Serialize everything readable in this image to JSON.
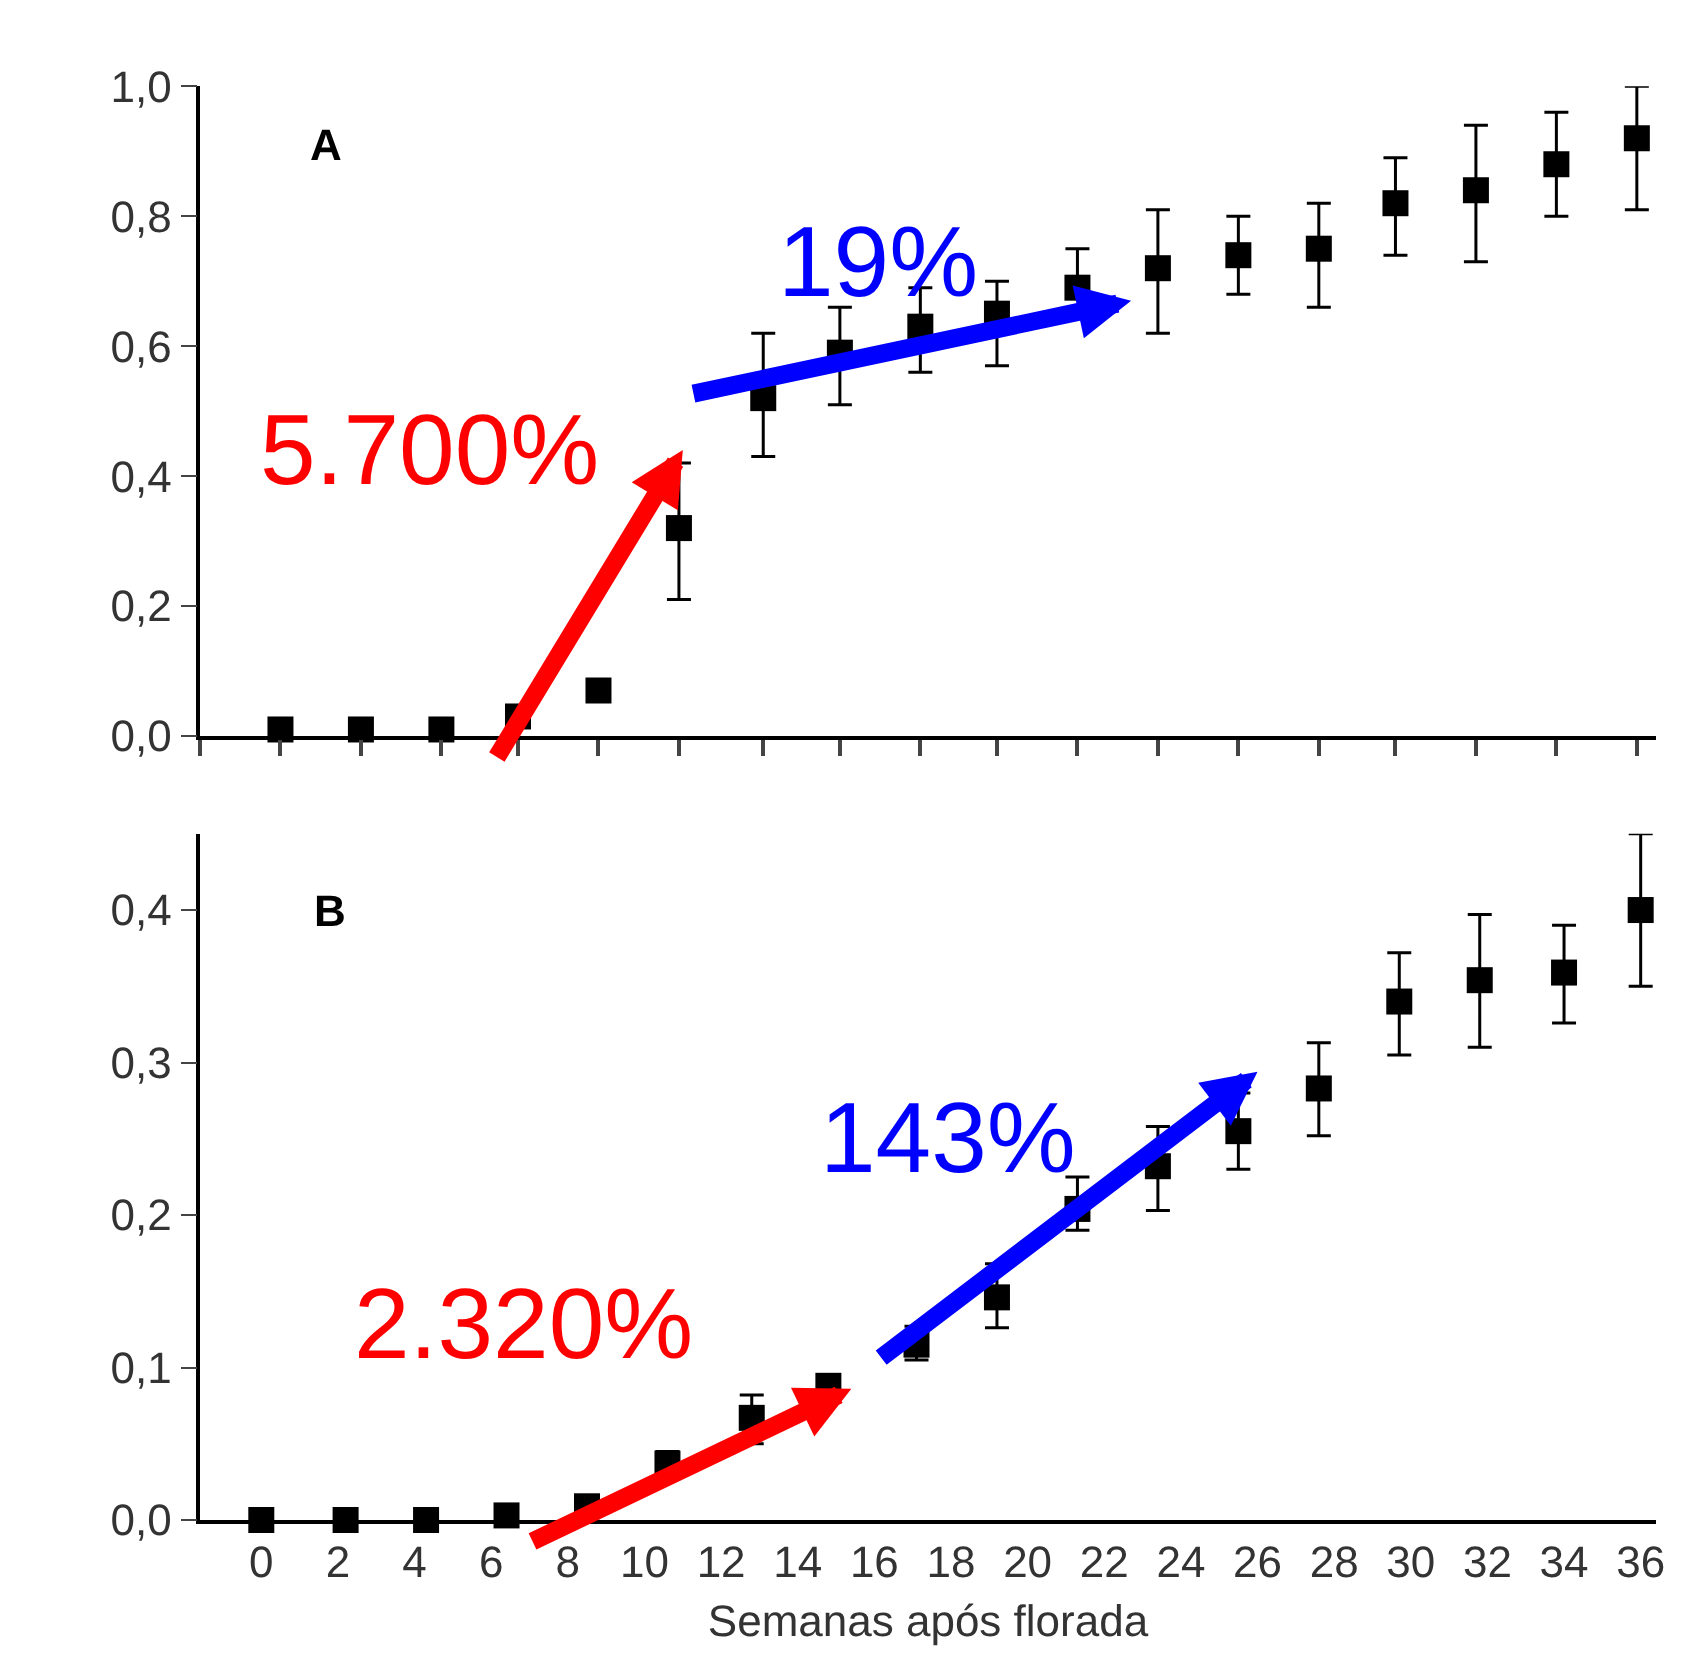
{
  "chart_data": [
    {
      "type": "scatter",
      "x": [
        0.5,
        2.6,
        4.7,
        6.7,
        8.8,
        10.9,
        13.1,
        15.1,
        17.2,
        19.2,
        21.3,
        23.4,
        25.5,
        27.6,
        29.6,
        31.7,
        33.8,
        35.9
      ],
      "values": [
        0.01,
        0.01,
        0.01,
        0.03,
        0.07,
        0.32,
        0.52,
        0.59,
        0.63,
        0.65,
        0.69,
        0.72,
        0.74,
        0.75,
        0.82,
        0.84,
        0.88,
        0.92
      ],
      "errors": [
        null,
        null,
        null,
        null,
        null,
        [
          0.21,
          0.42
        ],
        [
          0.43,
          0.62
        ],
        [
          0.51,
          0.66
        ],
        [
          0.56,
          0.69
        ],
        [
          0.57,
          0.7
        ],
        [
          0.69,
          0.75
        ],
        [
          0.62,
          0.81
        ],
        [
          0.68,
          0.8
        ],
        [
          0.66,
          0.82
        ],
        [
          0.74,
          0.89
        ],
        [
          0.73,
          0.94
        ],
        [
          0.8,
          0.96
        ],
        [
          0.81,
          1.0
        ]
      ],
      "color": "#000000",
      "marker": "square",
      "grid": false,
      "tick_labels": "y",
      "xlim": [
        -1.6,
        36.4
      ],
      "xticks": [
        {
          "value": -1.6,
          "label": null
        },
        {
          "value": 0.5,
          "label": null
        },
        {
          "value": 2.6,
          "label": null
        },
        {
          "value": 4.7,
          "label": null
        },
        {
          "value": 6.7,
          "label": null
        },
        {
          "value": 8.8,
          "label": null
        },
        {
          "value": 10.9,
          "label": null
        },
        {
          "value": 13.1,
          "label": null
        },
        {
          "value": 15.1,
          "label": null
        },
        {
          "value": 17.2,
          "label": null
        },
        {
          "value": 19.2,
          "label": null
        },
        {
          "value": 21.3,
          "label": null
        },
        {
          "value": 23.4,
          "label": null
        },
        {
          "value": 25.5,
          "label": null
        },
        {
          "value": 27.6,
          "label": null
        },
        {
          "value": 29.6,
          "label": null
        },
        {
          "value": 31.7,
          "label": null
        },
        {
          "value": 33.8,
          "label": null
        },
        {
          "value": 35.9,
          "label": null
        }
      ],
      "ylim": [
        0,
        1
      ],
      "yticks": [
        {
          "value": 0,
          "label": "0,0"
        },
        {
          "value": 0.2,
          "label": "0,2"
        },
        {
          "value": 0.4,
          "label": "0,4"
        },
        {
          "value": 0.6,
          "label": "0,6"
        },
        {
          "value": 0.8,
          "label": "0,8"
        },
        {
          "value": 1,
          "label": "1,0"
        }
      ],
      "annotations": [
        "A",
        "5.700%",
        "19%"
      ]
    },
    {
      "type": "scatter",
      "x": [
        0,
        2.2,
        4.3,
        6.4,
        8.5,
        10.6,
        12.8,
        14.8,
        17.1,
        19.2,
        21.3,
        23.4,
        25.5,
        27.6,
        29.7,
        31.8,
        34,
        36
      ],
      "values": [
        0,
        0,
        0,
        0.003,
        0.009,
        0.037,
        0.067,
        0.088,
        0.115,
        0.146,
        0.204,
        0.232,
        0.255,
        0.283,
        0.34,
        0.354,
        0.359,
        0.4
      ],
      "errors": [
        null,
        null,
        null,
        null,
        null,
        [
          0.03,
          0.045
        ],
        [
          0.05,
          0.082
        ],
        null,
        [
          0.105,
          0.127
        ],
        [
          0.126,
          0.168
        ],
        [
          0.19,
          0.225
        ],
        [
          0.203,
          0.258
        ],
        [
          0.23,
          0.28
        ],
        [
          0.252,
          0.313
        ],
        [
          0.305,
          0.372
        ],
        [
          0.31,
          0.397
        ],
        [
          0.326,
          0.39
        ],
        [
          0.35,
          0.45
        ]
      ],
      "color": "#000000",
      "marker": "square",
      "grid": false,
      "xlabel": "Semanas após florada",
      "xlim": [
        -1.6,
        36.4
      ],
      "xticks": [
        0,
        2,
        4,
        6,
        8,
        10,
        12,
        14,
        16,
        18,
        20,
        22,
        24,
        26,
        28,
        30,
        32,
        34,
        36
      ],
      "ylim": [
        0,
        0.45
      ],
      "yticks": [
        {
          "value": 0,
          "label": "0,0"
        },
        {
          "value": 0.1,
          "label": "0,1"
        },
        {
          "value": 0.2,
          "label": "0,2"
        },
        {
          "value": 0.3,
          "label": "0,3"
        },
        {
          "value": 0.4,
          "label": "0,4"
        }
      ],
      "annotations": [
        "B",
        "2.320%",
        "143%"
      ]
    }
  ]
}
